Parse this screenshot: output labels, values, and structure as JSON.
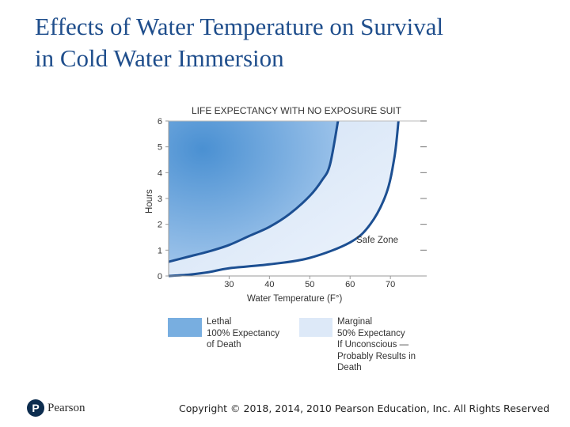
{
  "slide": {
    "title_line1": "Effects of Water Temperature on Survival",
    "title_line2": "in Cold Water Immersion",
    "copyright": "Copyright © 2018, 2014, 2010 Pearson Education, Inc. All Rights Reserved",
    "logo_mark": "P",
    "logo_text": "Pearson"
  },
  "chart_data": {
    "type": "area",
    "title": "LIFE EXPECTANCY WITH NO EXPOSURE SUIT",
    "xlabel": "Water Temperature (F°)",
    "ylabel": "Hours",
    "xlim": [
      15,
      79
    ],
    "ylim": [
      0,
      6
    ],
    "x_ticks": [
      30,
      40,
      50,
      60,
      70
    ],
    "y_ticks": [
      0,
      1,
      2,
      3,
      4,
      5,
      6
    ],
    "series": [
      {
        "name": "Lethal boundary",
        "x": [
          15,
          20,
          25,
          30,
          35,
          40,
          45,
          50,
          53,
          55,
          57
        ],
        "y": [
          0.55,
          0.75,
          0.95,
          1.2,
          1.55,
          1.9,
          2.4,
          3.1,
          3.7,
          4.3,
          6.0
        ]
      },
      {
        "name": "Marginal boundary",
        "x": [
          15,
          20,
          25,
          30,
          40,
          50,
          60,
          65,
          69,
          71,
          72
        ],
        "y": [
          0.0,
          0.05,
          0.15,
          0.3,
          0.45,
          0.7,
          1.3,
          2.0,
          3.2,
          4.6,
          6.0
        ]
      }
    ],
    "annotations": [
      "Safe Zone"
    ],
    "colors": {
      "lethal": "#4a90d2",
      "lethal_light": "#8cb8e6",
      "marginal": "#dce8f7",
      "curve": "#1c4f92",
      "axis": "#999999"
    },
    "legend": [
      {
        "name": "lethal",
        "color": "#78aee0",
        "lines": [
          "Lethal",
          "100% Expectancy",
          "of Death"
        ]
      },
      {
        "name": "marginal",
        "color": "#dde9f8",
        "lines": [
          "Marginal",
          "50% Expectancy",
          "If Unconscious —",
          "Probably Results in",
          "Death"
        ]
      }
    ]
  }
}
